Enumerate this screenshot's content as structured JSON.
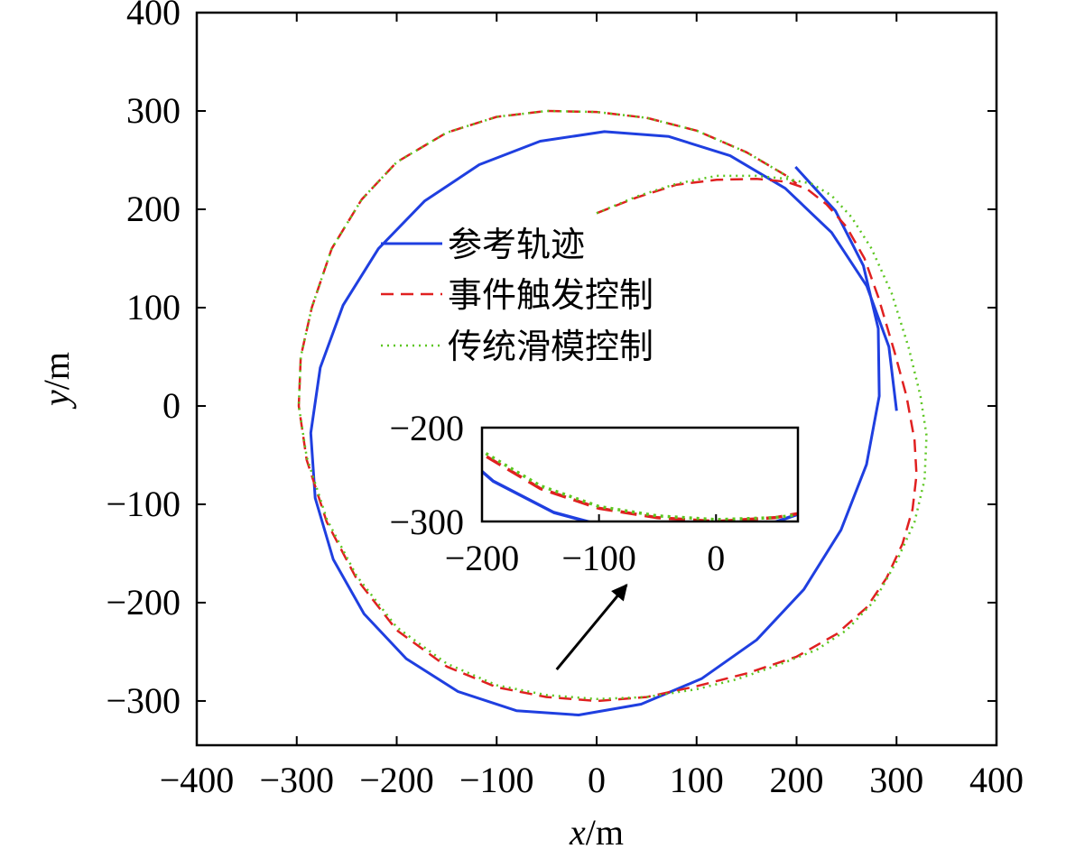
{
  "chart_data": {
    "type": "line",
    "title": "",
    "xlabel": {
      "var": "x",
      "unit": "/m"
    },
    "ylabel": {
      "var": "y",
      "unit": "/m"
    },
    "xlim": [
      -400,
      400
    ],
    "ylim": [
      -345,
      400
    ],
    "xticks": [
      -400,
      -300,
      -200,
      -100,
      0,
      100,
      200,
      300,
      400
    ],
    "yticks": [
      -300,
      -200,
      -100,
      0,
      100,
      200,
      300,
      400
    ],
    "grid": false,
    "legend_position": "upper-left-inside",
    "series": [
      {
        "name": "参考轨迹",
        "style": "solid",
        "color": "#1f3fe0",
        "x": [
          300,
          292.4,
          270.3,
          235,
          188.6,
          133.5,
          72.2,
          7.8,
          -56.4,
          -117.4,
          -172.2,
          -218.3,
          -253.6,
          -276.5,
          -286,
          -281.5,
          -263.5,
          -232.7,
          -190.4,
          -138.7,
          -80.3,
          -18,
          44.5,
          104.9,
          160,
          207.2,
          244.4,
          270,
          282.7,
          281.7,
          266.8,
          238.8,
          198.9
        ],
        "y": [
          -4.9,
          60.2,
          121.8,
          176.4,
          221.4,
          254.5,
          274,
          279,
          269.3,
          245.4,
          208.3,
          159.9,
          102.5,
          39,
          -27.5,
          -93.6,
          -156,
          -211.4,
          -257,
          -290.4,
          -309.9,
          -314.3,
          -303.3,
          -277.4,
          -237.9,
          -186.6,
          -126.1,
          -59.5,
          10.1,
          78.7,
          142.7,
          198.5,
          243.1
        ]
      },
      {
        "name": "事件触发控制",
        "style": "dashed",
        "color": "#e02020",
        "x": [
          0,
          40,
          80,
          120,
          160,
          190,
          210,
          230,
          250,
          268,
          282,
          298,
          310,
          318,
          320,
          316,
          306,
          290,
          270,
          240,
          200,
          150,
          100,
          50,
          0,
          -50,
          -100,
          -150,
          -200,
          -240,
          -270,
          -290,
          -298,
          -296,
          -285,
          -265,
          -235,
          -200,
          -150,
          -100,
          -50,
          0,
          50,
          100,
          150,
          190,
          200
        ],
        "y": [
          196,
          212,
          225,
          230,
          231,
          228,
          221,
          205,
          182,
          150,
          110,
          55,
          10,
          -35,
          -70,
          -105,
          -140,
          -175,
          -205,
          -232,
          -255,
          -272,
          -285,
          -296,
          -300,
          -296,
          -286,
          -265,
          -228,
          -176,
          -118,
          -55,
          0,
          50,
          100,
          160,
          210,
          248,
          278,
          294,
          300,
          299,
          293,
          280,
          258,
          234,
          226
        ]
      },
      {
        "name": "传统滑模控制",
        "style": "dotted",
        "color": "#5cc620",
        "x": [
          0,
          40,
          80,
          120,
          160,
          190,
          215,
          235,
          255,
          275,
          295,
          312,
          324,
          330,
          328,
          318,
          300,
          278,
          250,
          220,
          180,
          140,
          100,
          50,
          0,
          -50,
          -100,
          -150,
          -200,
          -240,
          -270,
          -290,
          -298,
          -296,
          -285,
          -265,
          -235,
          -200,
          -150,
          -100,
          -50,
          0,
          50,
          100,
          150,
          190,
          200
        ],
        "y": [
          196,
          213,
          226,
          234,
          234,
          231,
          226,
          214,
          192,
          160,
          115,
          60,
          10,
          -30,
          -75,
          -118,
          -158,
          -198,
          -228,
          -248,
          -264,
          -278,
          -288,
          -296,
          -298,
          -294,
          -284,
          -262,
          -225,
          -173,
          -115,
          -52,
          0,
          50,
          100,
          160,
          210,
          248,
          278,
          294,
          300,
          299,
          293,
          280,
          258,
          234,
          226
        ]
      }
    ],
    "inset": {
      "xlim": [
        -200,
        70
      ],
      "ylim": [
        -300,
        -200
      ],
      "xticks": [
        -200,
        -100,
        0
      ],
      "yticks": [
        -300,
        -200
      ],
      "arrow": {
        "from": [
          -40,
          -268
        ],
        "to": [
          30,
          -182
        ]
      }
    }
  }
}
